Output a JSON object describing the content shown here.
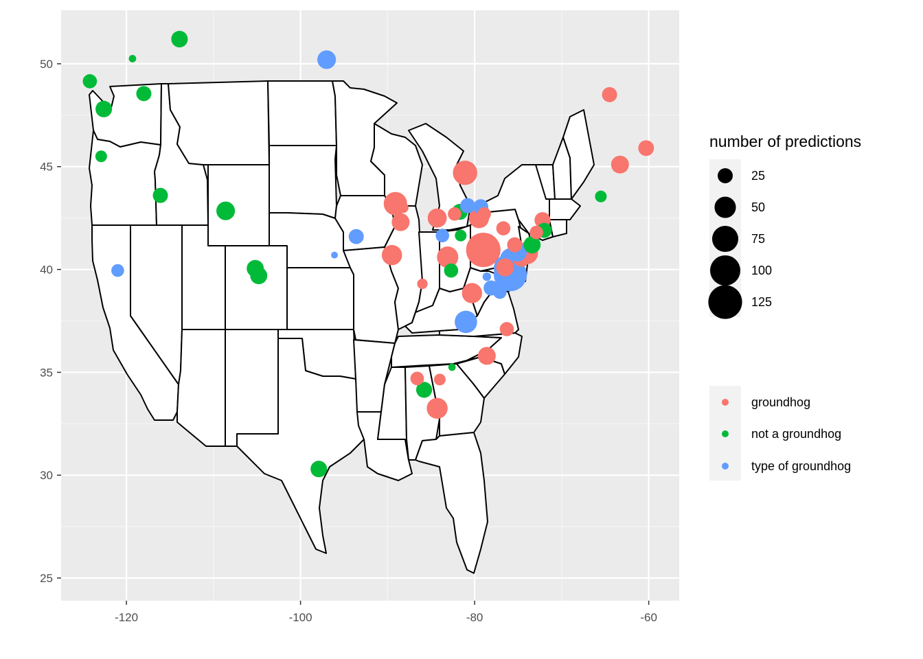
{
  "chart_data": {
    "type": "scatter",
    "subtype": "map-points",
    "xlim": [
      -127.5,
      -56.5
    ],
    "ylim": [
      23.9,
      52.6
    ],
    "x_ticks": [
      -120,
      -100,
      -80,
      -60
    ],
    "x_tick_labels": [
      "-120",
      "-100",
      "-80",
      "-60"
    ],
    "y_ticks": [
      25,
      30,
      35,
      40,
      45,
      50
    ],
    "y_tick_labels": [
      "25",
      "30",
      "35",
      "40",
      "45",
      "50"
    ],
    "grid": true,
    "legend_position": "right",
    "size_legend": {
      "title": "number of predictions",
      "entries": [
        {
          "label": "25",
          "value": 25
        },
        {
          "label": "50",
          "value": 50
        },
        {
          "label": "75",
          "value": 75
        },
        {
          "label": "100",
          "value": 100
        },
        {
          "label": "125",
          "value": 125
        }
      ]
    },
    "color_legend": {
      "title": "",
      "entries": [
        {
          "label": "groundhog",
          "color": "#F8766D"
        },
        {
          "label": "not a groundhog",
          "color": "#00BA38"
        },
        {
          "label": "type of groundhog",
          "color": "#619CFF"
        }
      ]
    },
    "series": [
      {
        "label": "groundhog",
        "color": "#F8766D",
        "points": [
          {
            "lon": -64.5,
            "lat": 48.5,
            "n": 25
          },
          {
            "lon": -60.3,
            "lat": 45.9,
            "n": 27
          },
          {
            "lon": -63.3,
            "lat": 45.1,
            "n": 35
          },
          {
            "lon": -81.1,
            "lat": 44.7,
            "n": 65
          },
          {
            "lon": -89.1,
            "lat": 43.2,
            "n": 60
          },
          {
            "lon": -88.2,
            "lat": 43.0,
            "n": 12
          },
          {
            "lon": -88.5,
            "lat": 42.3,
            "n": 35
          },
          {
            "lon": -84.3,
            "lat": 42.5,
            "n": 40
          },
          {
            "lon": -82.3,
            "lat": 42.7,
            "n": 20
          },
          {
            "lon": -79.5,
            "lat": 42.5,
            "n": 45
          },
          {
            "lon": -78.9,
            "lat": 42.7,
            "n": 20
          },
          {
            "lon": -76.7,
            "lat": 42.0,
            "n": 22
          },
          {
            "lon": -72.2,
            "lat": 42.4,
            "n": 28
          },
          {
            "lon": -72.9,
            "lat": 41.8,
            "n": 20
          },
          {
            "lon": -89.5,
            "lat": 40.7,
            "n": 45
          },
          {
            "lon": -83.1,
            "lat": 40.6,
            "n": 50
          },
          {
            "lon": -79.0,
            "lat": 40.95,
            "n": 130
          },
          {
            "lon": -75.4,
            "lat": 41.2,
            "n": 25
          },
          {
            "lon": -74.0,
            "lat": 40.8,
            "n": 55
          },
          {
            "lon": -74.6,
            "lat": 40.6,
            "n": 40
          },
          {
            "lon": -76.5,
            "lat": 40.1,
            "n": 35
          },
          {
            "lon": -86.0,
            "lat": 39.3,
            "n": 12
          },
          {
            "lon": -80.3,
            "lat": 38.85,
            "n": 45
          },
          {
            "lon": -76.3,
            "lat": 37.1,
            "n": 22
          },
          {
            "lon": -78.6,
            "lat": 35.8,
            "n": 35
          },
          {
            "lon": -86.6,
            "lat": 34.7,
            "n": 20
          },
          {
            "lon": -84.0,
            "lat": 34.65,
            "n": 15
          },
          {
            "lon": -84.3,
            "lat": 33.25,
            "n": 48
          }
        ]
      },
      {
        "label": "not a groundhog",
        "color": "#00BA38",
        "points": [
          {
            "lon": -113.9,
            "lat": 51.2,
            "n": 30
          },
          {
            "lon": -119.3,
            "lat": 50.25,
            "n": 6
          },
          {
            "lon": -124.2,
            "lat": 49.15,
            "n": 22
          },
          {
            "lon": -118.0,
            "lat": 48.55,
            "n": 25
          },
          {
            "lon": -122.6,
            "lat": 47.8,
            "n": 30
          },
          {
            "lon": -122.9,
            "lat": 45.5,
            "n": 15
          },
          {
            "lon": -116.1,
            "lat": 43.6,
            "n": 25
          },
          {
            "lon": -108.6,
            "lat": 42.85,
            "n": 38
          },
          {
            "lon": -105.2,
            "lat": 40.05,
            "n": 32
          },
          {
            "lon": -104.8,
            "lat": 39.7,
            "n": 32
          },
          {
            "lon": -97.9,
            "lat": 30.3,
            "n": 30
          },
          {
            "lon": -81.7,
            "lat": 42.8,
            "n": 28
          },
          {
            "lon": -81.6,
            "lat": 41.65,
            "n": 15
          },
          {
            "lon": -82.7,
            "lat": 39.95,
            "n": 22
          },
          {
            "lon": -73.4,
            "lat": 41.2,
            "n": 32
          },
          {
            "lon": -72.0,
            "lat": 41.9,
            "n": 25
          },
          {
            "lon": -65.5,
            "lat": 43.55,
            "n": 15
          },
          {
            "lon": -82.6,
            "lat": 35.25,
            "n": 6
          },
          {
            "lon": -85.8,
            "lat": 34.15,
            "n": 28
          }
        ]
      },
      {
        "label": "type of groundhog",
        "color": "#619CFF",
        "points": [
          {
            "lon": -97.0,
            "lat": 50.2,
            "n": 38
          },
          {
            "lon": -121.0,
            "lat": 39.95,
            "n": 18
          },
          {
            "lon": -93.6,
            "lat": 41.6,
            "n": 25
          },
          {
            "lon": -96.1,
            "lat": 40.7,
            "n": 5
          },
          {
            "lon": -80.8,
            "lat": 43.1,
            "n": 25
          },
          {
            "lon": -79.3,
            "lat": 43.05,
            "n": 25
          },
          {
            "lon": -83.7,
            "lat": 41.65,
            "n": 20
          },
          {
            "lon": -75.1,
            "lat": 40.85,
            "n": 40
          },
          {
            "lon": -75.8,
            "lat": 40.5,
            "n": 55
          },
          {
            "lon": -76.2,
            "lat": 40.05,
            "n": 85
          },
          {
            "lon": -75.9,
            "lat": 39.75,
            "n": 120
          },
          {
            "lon": -78.6,
            "lat": 39.65,
            "n": 8
          },
          {
            "lon": -78.1,
            "lat": 39.1,
            "n": 25
          },
          {
            "lon": -77.1,
            "lat": 38.9,
            "n": 20
          },
          {
            "lon": -81.0,
            "lat": 37.45,
            "n": 55
          }
        ]
      }
    ]
  }
}
